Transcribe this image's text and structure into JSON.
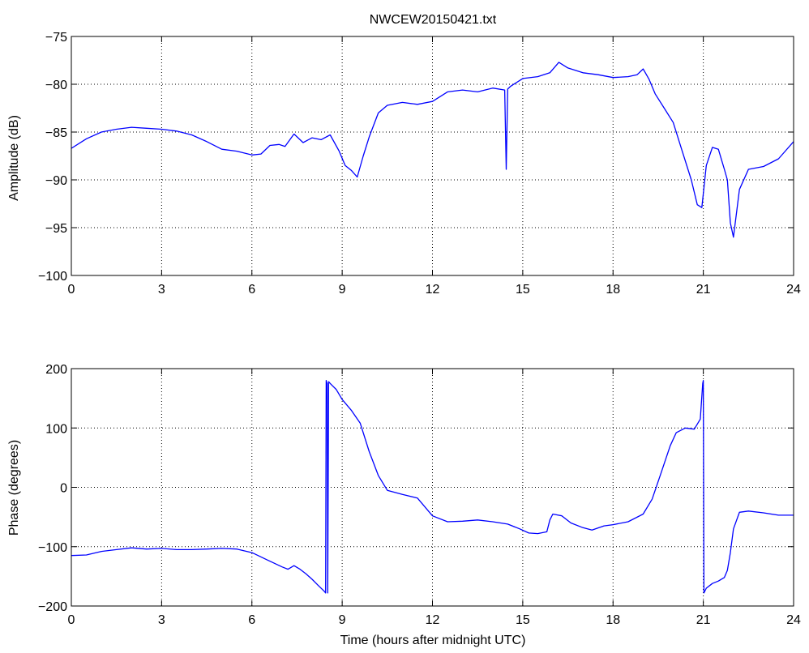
{
  "figure": {
    "title": "NWCEW20150421.txt"
  },
  "chart_data": [
    {
      "type": "line",
      "title": "NWCEW20150421.txt",
      "xlabel": "",
      "ylabel": "Amplitude (dB)",
      "xlim": [
        0,
        24
      ],
      "ylim": [
        -100,
        -75
      ],
      "xticks": [
        "0",
        "3",
        "6",
        "9",
        "12",
        "15",
        "18",
        "21",
        "24"
      ],
      "yticks": [
        "−100",
        "−95",
        "−90",
        "−85",
        "−80",
        "−75"
      ],
      "grid": true,
      "line_color": "#0000ff",
      "series": [
        {
          "x": [
            0,
            0.5,
            1,
            1.5,
            2,
            2.5,
            3,
            3.5,
            4,
            4.5,
            5,
            5.5,
            6,
            6.3,
            6.6,
            6.9,
            7.1,
            7.4,
            7.7,
            8.0,
            8.3,
            8.6,
            8.9,
            9.1,
            9.3,
            9.5,
            9.7,
            9.9,
            10.2,
            10.5,
            11.0,
            11.5,
            12.0,
            12.5,
            13.0,
            13.5,
            14.0,
            14.4,
            14.45,
            14.5,
            14.6,
            15.0,
            15.5,
            15.9,
            16.2,
            16.5,
            17.0,
            17.5,
            18.0,
            18.5,
            18.8,
            19.0,
            19.2,
            19.4,
            19.7,
            20.0,
            20.3,
            20.6,
            20.8,
            20.95,
            21.1,
            21.3,
            21.5,
            21.7,
            21.8,
            21.9,
            22.0,
            22.2,
            22.5,
            23.0,
            23.5,
            24.0
          ],
          "y": [
            -86.7,
            -85.7,
            -85.0,
            -84.7,
            -84.5,
            -84.6,
            -84.7,
            -84.9,
            -85.3,
            -86.0,
            -86.8,
            -87.0,
            -87.4,
            -87.3,
            -86.4,
            -86.3,
            -86.5,
            -85.2,
            -86.1,
            -85.6,
            -85.8,
            -85.3,
            -87.0,
            -88.5,
            -89.0,
            -89.7,
            -87.5,
            -85.5,
            -83.0,
            -82.2,
            -81.9,
            -82.1,
            -81.8,
            -80.8,
            -80.6,
            -80.8,
            -80.4,
            -80.6,
            -88.9,
            -80.5,
            -80.2,
            -79.4,
            -79.2,
            -78.8,
            -77.7,
            -78.3,
            -78.8,
            -79.0,
            -79.3,
            -79.2,
            -79.0,
            -78.4,
            -79.5,
            -81.0,
            -82.5,
            -84.0,
            -87.0,
            -90.0,
            -92.6,
            -92.9,
            -88.5,
            -86.6,
            -86.8,
            -88.9,
            -90.0,
            -94.5,
            -96.0,
            -91.0,
            -88.9,
            -88.6,
            -87.8,
            -86.0
          ]
        }
      ]
    },
    {
      "type": "line",
      "title": "",
      "xlabel": "Time (hours after midnight UTC)",
      "ylabel": "Phase (degrees)",
      "xlim": [
        0,
        24
      ],
      "ylim": [
        -200,
        200
      ],
      "xticks": [
        "0",
        "3",
        "6",
        "9",
        "12",
        "15",
        "18",
        "21",
        "24"
      ],
      "yticks": [
        "−200",
        "−100",
        "0",
        "100",
        "200"
      ],
      "grid": true,
      "line_color": "#0000ff",
      "series": [
        {
          "x": [
            0,
            0.5,
            1,
            1.5,
            2,
            2.5,
            3,
            3.5,
            4,
            4.5,
            5,
            5.5,
            6,
            6.5,
            7,
            7.2,
            7.4,
            7.6,
            7.8,
            8.0,
            8.2,
            8.4,
            8.45,
            8.47,
            8.5,
            8.52,
            8.55,
            8.6,
            8.8,
            9.0,
            9.3,
            9.6,
            9.9,
            10.2,
            10.5,
            11.0,
            11.5,
            12.0,
            12.5,
            13.0,
            13.5,
            14.0,
            14.5,
            14.9,
            15.2,
            15.5,
            15.8,
            15.9,
            16.0,
            16.3,
            16.6,
            17.0,
            17.3,
            17.7,
            18.0,
            18.5,
            19.0,
            19.3,
            19.6,
            19.9,
            20.1,
            20.4,
            20.7,
            20.9,
            20.98,
            21.0,
            21.02,
            21.1,
            21.3,
            21.5,
            21.7,
            21.8,
            21.9,
            22.0,
            22.2,
            22.5,
            23.0,
            23.5,
            24.0
          ],
          "y": [
            -115,
            -114,
            -108,
            -105,
            -102,
            -104,
            -103,
            -105,
            -105,
            -104,
            -103,
            -104,
            -110,
            -122,
            -134,
            -138,
            -132,
            -138,
            -146,
            -155,
            -165,
            -175,
            -178,
            180,
            175,
            -178,
            178,
            175,
            165,
            148,
            130,
            108,
            60,
            20,
            -5,
            -12,
            -18,
            -48,
            -58,
            -57,
            -55,
            -58,
            -62,
            -70,
            -77,
            -78,
            -75,
            -55,
            -45,
            -48,
            -60,
            -68,
            -72,
            -65,
            -63,
            -58,
            -45,
            -20,
            25,
            70,
            92,
            100,
            98,
            115,
            175,
            180,
            -178,
            -170,
            -162,
            -158,
            -152,
            -140,
            -110,
            -70,
            -42,
            -40,
            -43,
            -47,
            -47
          ]
        }
      ]
    }
  ]
}
